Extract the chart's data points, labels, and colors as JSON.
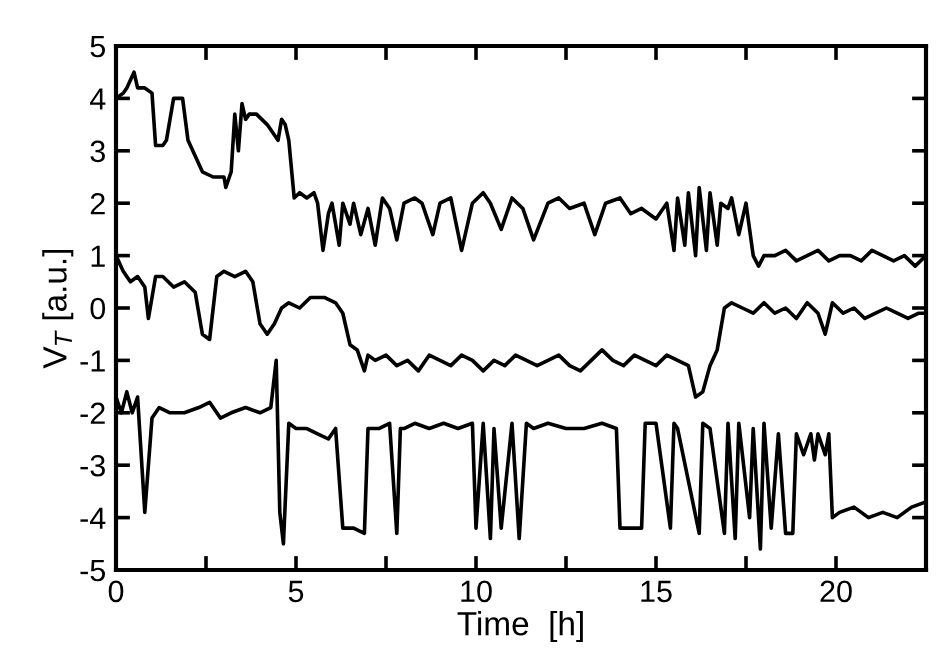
{
  "chart_data": {
    "type": "line",
    "xlabel": "Time  [h]",
    "ylabel": "V$_{T}$ [a.u.]",
    "xlim": [
      0,
      22.5
    ],
    "ylim": [
      -5,
      5
    ],
    "xticks": [
      0,
      {
        "value": 2.5,
        "label": null
      },
      5,
      {
        "value": 7.5,
        "label": null
      },
      10,
      {
        "value": 12.5,
        "label": null
      },
      15,
      {
        "value": 17.5,
        "label": null
      },
      20
    ],
    "yticks": [
      -5,
      -4,
      -3,
      -2,
      -1,
      0,
      1,
      2,
      3,
      4,
      5
    ],
    "grid": false,
    "marker": "none",
    "line_style": "solid",
    "series": [
      {
        "color": "#000000",
        "x": [
          0,
          0.2,
          0.3,
          0.5,
          0.6,
          0.8,
          1.0,
          1.1,
          1.3,
          1.4,
          1.6,
          1.85,
          2.0,
          2.4,
          2.7,
          3.0,
          3.05,
          3.2,
          3.3,
          3.4,
          3.5,
          3.6,
          3.7,
          3.9,
          4.2,
          4.5,
          4.6,
          4.7,
          4.8,
          4.95,
          5.1,
          5.3,
          5.5,
          5.6,
          5.75,
          5.9,
          6.0,
          6.2,
          6.3,
          6.5,
          6.6,
          6.8,
          7.0,
          7.2,
          7.4,
          7.6,
          7.8,
          8.0,
          8.3,
          8.5,
          8.8,
          9.0,
          9.3,
          9.6,
          9.9,
          10.2,
          10.4,
          10.7,
          11.0,
          11.3,
          11.6,
          12.0,
          12.3,
          12.6,
          13.0,
          13.3,
          13.6,
          14.0,
          14.3,
          14.6,
          15.0,
          15.3,
          15.5,
          15.6,
          15.8,
          15.9,
          16.1,
          16.2,
          16.4,
          16.5,
          16.7,
          16.8,
          17.0,
          17.1,
          17.3,
          17.5,
          17.7,
          17.85,
          18.0,
          18.3,
          18.6,
          18.9,
          19.2,
          19.5,
          19.8,
          20.1,
          20.4,
          20.7,
          21.0,
          21.3,
          21.6,
          21.9,
          22.2,
          22.5
        ],
        "values": [
          4.0,
          4.1,
          4.2,
          4.5,
          4.2,
          4.2,
          4.1,
          3.1,
          3.1,
          3.2,
          4.0,
          4.0,
          3.2,
          2.6,
          2.5,
          2.5,
          2.3,
          2.6,
          3.7,
          3.0,
          3.9,
          3.6,
          3.7,
          3.7,
          3.5,
          3.2,
          3.6,
          3.5,
          3.2,
          2.1,
          2.2,
          2.1,
          2.2,
          2.0,
          1.1,
          1.8,
          2.0,
          1.2,
          2.0,
          1.6,
          2.0,
          1.4,
          1.9,
          1.2,
          2.1,
          1.9,
          1.3,
          2.0,
          2.1,
          2.0,
          1.4,
          2.0,
          2.1,
          1.1,
          2.0,
          2.2,
          2.0,
          1.5,
          2.1,
          1.9,
          1.3,
          2.0,
          2.1,
          1.9,
          2.0,
          1.4,
          2.0,
          2.1,
          1.8,
          1.9,
          1.7,
          2.0,
          1.1,
          2.1,
          1.2,
          2.2,
          1.0,
          2.3,
          1.1,
          2.2,
          1.2,
          2.0,
          1.9,
          2.1,
          1.4,
          2.0,
          1.0,
          0.8,
          1.0,
          1.0,
          1.1,
          0.9,
          1.0,
          1.1,
          0.9,
          1.0,
          1.0,
          0.9,
          1.1,
          1.0,
          0.9,
          1.0,
          0.8,
          1.0
        ]
      },
      {
        "color": "#000000",
        "x": [
          0,
          0.2,
          0.4,
          0.6,
          0.8,
          0.9,
          1.1,
          1.3,
          1.6,
          1.9,
          2.2,
          2.4,
          2.6,
          2.8,
          3.0,
          3.3,
          3.6,
          3.8,
          4.0,
          4.2,
          4.4,
          4.6,
          4.8,
          5.1,
          5.4,
          5.8,
          6.1,
          6.3,
          6.5,
          6.7,
          6.9,
          7.0,
          7.2,
          7.5,
          7.8,
          8.1,
          8.4,
          8.7,
          9.0,
          9.3,
          9.6,
          9.9,
          10.2,
          10.5,
          10.8,
          11.1,
          11.4,
          11.7,
          12.0,
          12.3,
          12.6,
          12.9,
          13.2,
          13.5,
          13.8,
          14.1,
          14.4,
          14.7,
          15.0,
          15.3,
          15.6,
          15.9,
          16.1,
          16.3,
          16.5,
          16.7,
          16.9,
          17.1,
          17.4,
          17.7,
          18.0,
          18.3,
          18.6,
          18.9,
          19.2,
          19.5,
          19.7,
          19.9,
          20.2,
          20.5,
          20.8,
          21.1,
          21.4,
          21.7,
          22.0,
          22.3,
          22.5
        ],
        "values": [
          1.0,
          0.7,
          0.5,
          0.6,
          0.4,
          -0.2,
          0.6,
          0.6,
          0.4,
          0.5,
          0.3,
          -0.5,
          -0.6,
          0.6,
          0.7,
          0.6,
          0.7,
          0.5,
          -0.3,
          -0.5,
          -0.3,
          0.0,
          0.1,
          0.0,
          0.2,
          0.2,
          0.1,
          -0.1,
          -0.7,
          -0.8,
          -1.2,
          -0.9,
          -1.0,
          -0.9,
          -1.1,
          -1.0,
          -1.2,
          -0.9,
          -1.0,
          -1.1,
          -0.9,
          -1.0,
          -1.2,
          -1.0,
          -1.1,
          -0.9,
          -1.0,
          -1.1,
          -1.0,
          -0.9,
          -1.1,
          -1.2,
          -1.0,
          -0.8,
          -1.0,
          -1.1,
          -0.9,
          -1.0,
          -1.1,
          -0.9,
          -1.0,
          -1.1,
          -1.7,
          -1.6,
          -1.1,
          -0.8,
          0.0,
          0.1,
          0.0,
          -0.1,
          0.1,
          -0.1,
          0.0,
          -0.2,
          0.1,
          -0.1,
          -0.5,
          0.1,
          -0.1,
          0.0,
          -0.2,
          -0.1,
          0.0,
          -0.1,
          -0.2,
          -0.1,
          -0.1
        ]
      },
      {
        "color": "#000000",
        "x": [
          0,
          0.15,
          0.3,
          0.45,
          0.6,
          0.8,
          1.0,
          1.2,
          1.5,
          1.9,
          2.3,
          2.6,
          2.9,
          3.2,
          3.6,
          4.0,
          4.3,
          4.45,
          4.55,
          4.65,
          4.8,
          5.0,
          5.3,
          5.6,
          5.9,
          6.1,
          6.3,
          6.6,
          6.9,
          7.0,
          7.3,
          7.6,
          7.8,
          7.9,
          8.0,
          8.3,
          8.7,
          9.1,
          9.5,
          9.9,
          10.0,
          10.2,
          10.4,
          10.5,
          10.7,
          11.0,
          11.2,
          11.4,
          11.6,
          12.0,
          12.5,
          13.0,
          13.5,
          13.9,
          14.0,
          14.6,
          14.7,
          15.0,
          15.4,
          15.5,
          15.6,
          16.2,
          16.3,
          16.5,
          16.9,
          17.0,
          17.2,
          17.3,
          17.6,
          17.7,
          17.9,
          18.0,
          18.2,
          18.4,
          18.6,
          18.8,
          18.9,
          19.1,
          19.3,
          19.4,
          19.5,
          19.7,
          19.8,
          19.9,
          20.1,
          20.5,
          20.9,
          21.3,
          21.7,
          22.1,
          22.5
        ],
        "values": [
          -1.7,
          -2.0,
          -1.6,
          -2.0,
          -1.7,
          -3.9,
          -2.1,
          -1.9,
          -2.0,
          -2.0,
          -1.9,
          -1.8,
          -2.1,
          -2.0,
          -1.9,
          -2.0,
          -1.9,
          -1.0,
          -3.9,
          -4.5,
          -2.2,
          -2.3,
          -2.3,
          -2.4,
          -2.5,
          -2.3,
          -4.2,
          -4.2,
          -4.3,
          -2.3,
          -2.3,
          -2.2,
          -4.3,
          -2.3,
          -2.3,
          -2.2,
          -2.3,
          -2.2,
          -2.3,
          -2.2,
          -4.2,
          -2.2,
          -4.4,
          -2.3,
          -4.2,
          -2.2,
          -4.4,
          -2.2,
          -2.3,
          -2.2,
          -2.3,
          -2.3,
          -2.2,
          -2.3,
          -4.2,
          -4.2,
          -2.2,
          -2.2,
          -4.2,
          -2.2,
          -2.3,
          -4.3,
          -2.2,
          -2.3,
          -4.3,
          -2.2,
          -4.4,
          -2.2,
          -4.0,
          -2.3,
          -4.6,
          -2.2,
          -4.2,
          -2.4,
          -4.3,
          -4.3,
          -2.4,
          -2.8,
          -2.4,
          -2.9,
          -2.4,
          -2.8,
          -2.4,
          -4.0,
          -3.9,
          -3.8,
          -4.0,
          -3.9,
          -4.0,
          -3.8,
          -3.7
        ]
      }
    ]
  }
}
